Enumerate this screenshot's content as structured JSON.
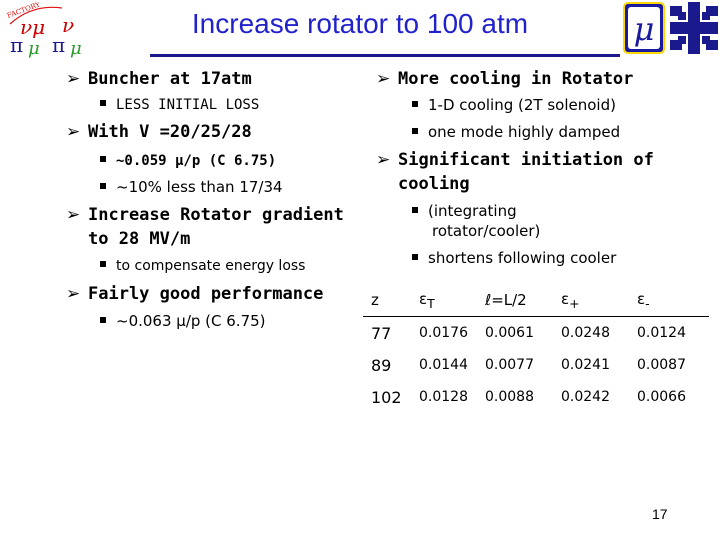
{
  "title": "Increase rotator to 100 atm",
  "left_column": {
    "b1": "Buncher at 17atm",
    "b1_sub": "LESS INITIAL LOSS",
    "b2": "With V =20/25/28",
    "b2_sub1": "~0.059 μ/p   (C 6.75)",
    "b2_sub2": "~10% less than 17/34",
    "b3_line1": "Increase Rotator gradient",
    "b3_line2": "to 28 MV/m",
    "b3_sub": "to compensate energy loss",
    "b4": "Fairly good performance",
    "b4_sub": "~0.063 μ/p  (C 6.75)"
  },
  "right_column": {
    "b1": "More cooling in Rotator",
    "b1_sub1": "1-D cooling (2T solenoid)",
    "b1_sub2": "one mode highly damped",
    "b2_line1": "Significant initiation of",
    "b2_line2": "cooling",
    "b2_sub1_line1": "(integrating",
    "b2_sub1_line2": "rotator/cooler)",
    "b2_sub2": "shortens following cooler"
  },
  "table": {
    "headers": [
      "z",
      "εT",
      "ℓ=L/2",
      "ε+",
      "ε-"
    ],
    "header_parts": {
      "eps_t": "ε",
      "eps_t_sub": "T",
      "l": "ℓ=L/2",
      "eps_plus": "ε",
      "eps_plus_sub": "+",
      "eps_minus": "ε",
      "eps_minus_sub": "-"
    },
    "rows": [
      [
        "77",
        "0.0176",
        "0.0061",
        "0.0248",
        "0.0124"
      ],
      [
        "89",
        "0.0144",
        "0.0077",
        "0.0241",
        "0.0087"
      ],
      [
        "102",
        "0.0128",
        "0.0088",
        "0.0242",
        "0.0066"
      ]
    ]
  },
  "logo_left_text": [
    "νμ",
    "ν",
    "π",
    "π",
    "μ",
    "FACTORY"
  ],
  "mu_logo_text": "μ",
  "page_number": "17",
  "colors": {
    "title": "#2222cc",
    "rule": "#1a1a8c",
    "mu_logo_bg": "#1a1aa0",
    "fermi_logo": "#1a1a8c"
  }
}
